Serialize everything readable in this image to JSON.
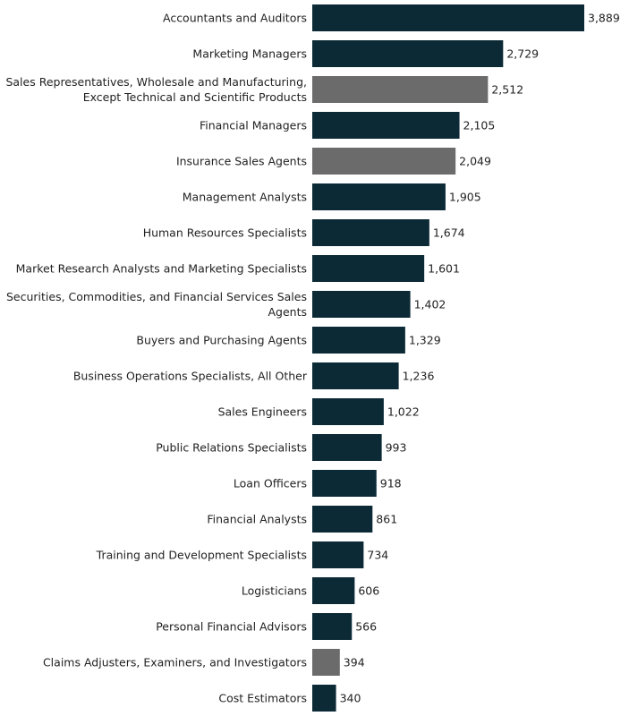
{
  "chart_data": {
    "type": "bar",
    "orientation": "horizontal",
    "title": "",
    "xlabel": "",
    "ylabel": "",
    "grid": false,
    "legend": "none",
    "xlim": [
      0,
      3889
    ],
    "colors": {
      "primary": "#0c2a36",
      "highlight": "#6b6b6b"
    },
    "categories": [
      [
        "Accountants and Auditors"
      ],
      [
        "Marketing Managers"
      ],
      [
        "Sales Representatives, Wholesale and Manufacturing,",
        "Except Technical and Scientific Products"
      ],
      [
        "Financial Managers"
      ],
      [
        "Insurance Sales Agents"
      ],
      [
        "Management Analysts"
      ],
      [
        "Human Resources Specialists"
      ],
      [
        "Market Research Analysts and Marketing Specialists"
      ],
      [
        "Securities, Commodities, and Financial Services Sales",
        "Agents"
      ],
      [
        "Buyers and Purchasing Agents"
      ],
      [
        "Business Operations Specialists, All Other"
      ],
      [
        "Sales Engineers"
      ],
      [
        "Public Relations Specialists"
      ],
      [
        "Loan Officers"
      ],
      [
        "Financial Analysts"
      ],
      [
        "Training and Development Specialists"
      ],
      [
        "Logisticians"
      ],
      [
        "Personal Financial Advisors"
      ],
      [
        "Claims Adjusters, Examiners, and Investigators"
      ],
      [
        "Cost Estimators"
      ]
    ],
    "values": [
      3889,
      2729,
      2512,
      2105,
      2049,
      1905,
      1674,
      1601,
      1402,
      1329,
      1236,
      1022,
      993,
      918,
      861,
      734,
      606,
      566,
      394,
      340
    ],
    "value_labels": [
      "3,889",
      "2,729",
      "2,512",
      "2,105",
      "2,049",
      "1,905",
      "1,674",
      "1,601",
      "1,402",
      "1,329",
      "1,236",
      "1,022",
      "993",
      "918",
      "861",
      "734",
      "606",
      "566",
      "394",
      "340"
    ],
    "highlighted": [
      false,
      false,
      true,
      false,
      true,
      false,
      false,
      false,
      false,
      false,
      false,
      false,
      false,
      false,
      false,
      false,
      false,
      false,
      true,
      false
    ]
  }
}
